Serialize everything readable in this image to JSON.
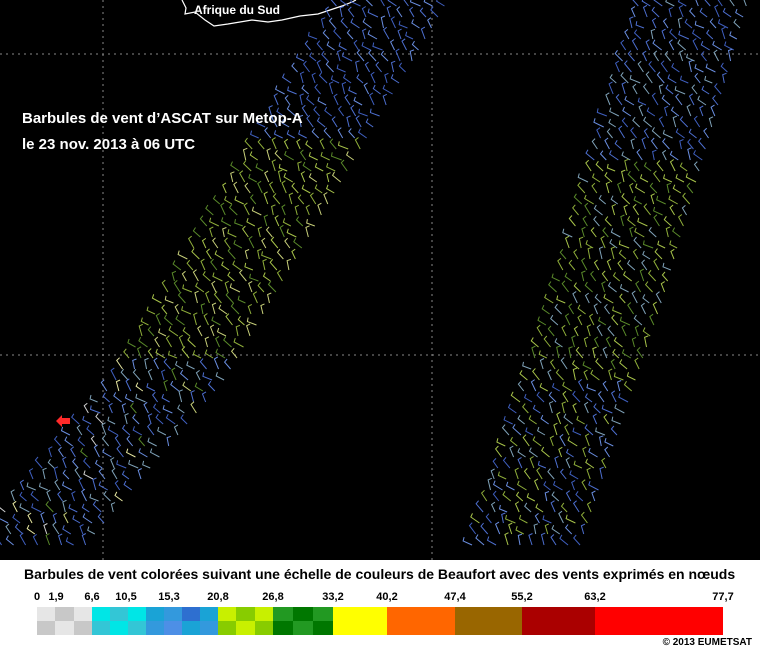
{
  "map": {
    "title_line1": "Barbules de vent d’ASCAT sur Metop-A",
    "title_line2": "le 23 nov. 2013 à 06 UTC",
    "country_label": "Afrique du Sud",
    "marker_color": "#ff2a2a"
  },
  "legend": {
    "title": "Barbules de vent colorées suivant une échelle de couleurs de Beaufort avec des vents exprimés en nœuds",
    "ticks": [
      "0",
      "1,9",
      "6,6",
      "10,5",
      "15,3",
      "20,8",
      "26,8",
      "33,2",
      "40,2",
      "47,4",
      "55,2",
      "63,2",
      "77,7"
    ],
    "colors": {
      "calm": [
        "#e6e6e6",
        "#c8c8c8"
      ],
      "light": [
        "#00e6e6",
        "#33c6d6"
      ],
      "gentle": [
        "#1aa3d6",
        "#3399dd"
      ],
      "moderate": [
        "#4d8fe6",
        "#2e6fd0"
      ],
      "fresh": [
        "#c8f000",
        "#88cc00"
      ],
      "strong": [
        "#229922",
        "#007700"
      ],
      "gale": "#ffff00",
      "strong_gale": "#ff6600",
      "storm": "#996600",
      "violent": "#aa0000",
      "hurricane": "#ff0000"
    }
  },
  "copyright": "© 2013 EUMETSAT"
}
